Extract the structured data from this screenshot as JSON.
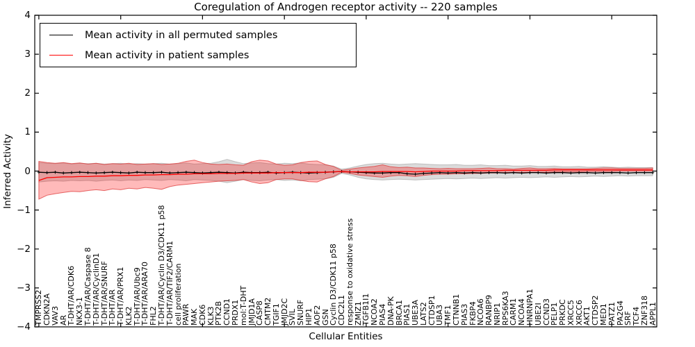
{
  "title": "Coregulation of Androgen receptor activity -- 220 samples",
  "axes": {
    "xlabel": "Cellular Entities",
    "ylabel": "Inferred Activity",
    "ytick_labels": [
      "4",
      "3",
      "2",
      "1",
      "0",
      "−1",
      "−2",
      "−3",
      "−4"
    ]
  },
  "legend": {
    "items": [
      {
        "label": "Mean activity in all permuted samples",
        "color": "#000000"
      },
      {
        "label": "Mean activity in patient samples",
        "color": "#ff0000"
      }
    ]
  },
  "colors": {
    "permuted_line": "#000000",
    "patient_line": "#ff0000",
    "permuted_band_fill": "rgba(125,125,125,0.28)",
    "permuted_band_edge": "rgba(145,145,145,0.5)",
    "patient_band_fill": "rgba(255,0,0,0.27)",
    "patient_band_edge": "rgba(220,45,45,0.7)",
    "axis": "#000000"
  },
  "chart_data": {
    "type": "line",
    "title": "Coregulation of Androgen receptor activity -- 220 samples",
    "xlabel": "Cellular Entities",
    "ylabel": "Inferred Activity",
    "ylim": [
      -4,
      4
    ],
    "yticks": [
      4,
      3,
      2,
      1,
      0,
      -1,
      -2,
      -3,
      -4
    ],
    "xtick_major_every": 10,
    "grid": false,
    "legend_position": "upper left",
    "categories": [
      "TMPRSS2",
      "CDKN2A",
      "VAV3",
      "AR",
      "T-DHT/AR/CDK6",
      "NKX3-1",
      "T-DHT/AR/Caspase 8",
      "T-DHT/AR/CyclinD1",
      "T-DHT/AR/SNURF",
      "T-DHT/AR",
      "T-DHT/AR/PRX1",
      "KLK2",
      "T-DHT/AR/Ubc9",
      "T-DHT/AR/ARA70",
      "FHL2",
      "T-DHT/AR/Cyclin D3/CDK11 p58",
      "T-DHT/AR/TIF2/CARM1",
      "cell proliferation",
      "PAWR",
      "MAK",
      "CDK6",
      "KLK3",
      "PTK2B",
      "CCND1",
      "PRDX1",
      "mol:T-DHT",
      "JMJD1A",
      "CASP8",
      "CMTM2",
      "TGIF1",
      "JMJD2C",
      "SVIL",
      "SNURF",
      "HIP1",
      "AOF2",
      "GSN",
      "Cyclin D3/CDK11 p58",
      "CDC2L1",
      "response to oxidative stress",
      "ZMIZ1",
      "TGFB1I1",
      "NCOA2",
      "PIAS4",
      "DNA-PK",
      "BRCA1",
      "PIAS1",
      "UBE3A",
      "LATS2",
      "CTDSP1",
      "UBA3",
      "TMF1",
      "CTNNB1",
      "PIAS3",
      "FKBP4",
      "NCOA6",
      "RANBP9",
      "NRIP1",
      "RPS6KA3",
      "CARM1",
      "NCOA4",
      "HNRNPA1",
      "UBE2I",
      "CCND3",
      "PELP1",
      "PRKDC",
      "XRCC5",
      "XRCC6",
      "AKT1",
      "CTDSP2",
      "MED1",
      "PATZ1",
      "PA2G4",
      "SRF",
      "TCF4",
      "ZNF318",
      "APPL1"
    ],
    "series": [
      {
        "name": "Mean activity in all permuted samples",
        "color": "#000000",
        "marker": "plus",
        "values": [
          -0.03,
          -0.04,
          -0.03,
          -0.05,
          -0.04,
          -0.03,
          -0.04,
          -0.05,
          -0.04,
          -0.03,
          -0.04,
          -0.05,
          -0.03,
          -0.04,
          -0.04,
          -0.03,
          -0.05,
          -0.04,
          -0.03,
          -0.04,
          -0.05,
          -0.04,
          -0.03,
          -0.04,
          -0.05,
          -0.03,
          -0.04,
          -0.04,
          -0.03,
          -0.05,
          -0.04,
          -0.03,
          -0.04,
          -0.05,
          -0.04,
          -0.03,
          -0.02,
          -0.01,
          -0.02,
          -0.03,
          -0.04,
          -0.05,
          -0.05,
          -0.04,
          -0.04,
          -0.07,
          -0.08,
          -0.06,
          -0.05,
          -0.04,
          -0.05,
          -0.04,
          -0.05,
          -0.04,
          -0.05,
          -0.04,
          -0.04,
          -0.05,
          -0.04,
          -0.05,
          -0.04,
          -0.04,
          -0.05,
          -0.04,
          -0.04,
          -0.05,
          -0.04,
          -0.04,
          -0.05,
          -0.04,
          -0.04,
          -0.04,
          -0.05,
          -0.04,
          -0.04,
          -0.04
        ],
        "band_lo": [
          -0.28,
          -0.26,
          -0.25,
          -0.26,
          -0.24,
          -0.25,
          -0.24,
          -0.26,
          -0.24,
          -0.23,
          -0.25,
          -0.23,
          -0.24,
          -0.22,
          -0.23,
          -0.24,
          -0.22,
          -0.23,
          -0.25,
          -0.22,
          -0.23,
          -0.24,
          -0.26,
          -0.3,
          -0.26,
          -0.22,
          -0.24,
          -0.25,
          -0.23,
          -0.22,
          -0.24,
          -0.23,
          -0.25,
          -0.22,
          -0.21,
          -0.2,
          -0.16,
          -0.06,
          -0.1,
          -0.16,
          -0.2,
          -0.22,
          -0.23,
          -0.22,
          -0.21,
          -0.22,
          -0.23,
          -0.22,
          -0.21,
          -0.2,
          -0.19,
          -0.2,
          -0.19,
          -0.18,
          -0.19,
          -0.18,
          -0.17,
          -0.18,
          -0.17,
          -0.16,
          -0.17,
          -0.16,
          -0.15,
          -0.16,
          -0.15,
          -0.14,
          -0.15,
          -0.14,
          -0.13,
          -0.14,
          -0.13,
          -0.12,
          -0.13,
          -0.12,
          -0.12,
          -0.12
        ],
        "band_hi": [
          0.22,
          0.2,
          0.19,
          0.21,
          0.18,
          0.2,
          0.19,
          0.2,
          0.18,
          0.19,
          0.2,
          0.18,
          0.19,
          0.18,
          0.19,
          0.2,
          0.18,
          0.19,
          0.21,
          0.18,
          0.19,
          0.2,
          0.24,
          0.3,
          0.24,
          0.19,
          0.21,
          0.22,
          0.19,
          0.18,
          0.2,
          0.19,
          0.21,
          0.18,
          0.17,
          0.16,
          0.13,
          0.05,
          0.08,
          0.13,
          0.17,
          0.19,
          0.2,
          0.18,
          0.17,
          0.18,
          0.19,
          0.18,
          0.17,
          0.16,
          0.16,
          0.17,
          0.15,
          0.15,
          0.16,
          0.14,
          0.14,
          0.15,
          0.13,
          0.13,
          0.14,
          0.12,
          0.12,
          0.13,
          0.11,
          0.11,
          0.12,
          0.1,
          0.1,
          0.11,
          0.1,
          0.09,
          0.1,
          0.09,
          0.09,
          0.09
        ],
        "band_fill": "rgba(125,125,125,0.28)",
        "band_edge": "rgba(145,145,145,0.5)"
      },
      {
        "name": "Mean activity in patient samples",
        "color": "#ff0000",
        "marker": "none",
        "values": [
          -0.24,
          -0.17,
          -0.16,
          -0.15,
          -0.15,
          -0.14,
          -0.14,
          -0.13,
          -0.13,
          -0.12,
          -0.12,
          -0.11,
          -0.11,
          -0.1,
          -0.1,
          -0.09,
          -0.09,
          -0.08,
          -0.08,
          -0.07,
          -0.07,
          -0.07,
          -0.06,
          -0.06,
          -0.06,
          -0.05,
          -0.05,
          -0.05,
          -0.05,
          -0.04,
          -0.04,
          -0.04,
          -0.04,
          -0.03,
          -0.03,
          -0.03,
          -0.02,
          -0.01,
          -0.02,
          -0.02,
          -0.02,
          -0.02,
          -0.01,
          -0.01,
          -0.01,
          -0.01,
          -0.02,
          -0.01,
          0.0,
          0.0,
          0.0,
          0.0,
          0.01,
          0.01,
          0.01,
          0.01,
          0.01,
          0.02,
          0.02,
          0.02,
          0.02,
          0.02,
          0.02,
          0.03,
          0.03,
          0.03,
          0.03,
          0.03,
          0.03,
          0.03,
          0.03,
          0.03,
          0.03,
          0.03,
          0.03,
          0.03
        ],
        "band_lo": [
          -0.72,
          -0.62,
          -0.58,
          -0.55,
          -0.52,
          -0.53,
          -0.5,
          -0.48,
          -0.5,
          -0.46,
          -0.48,
          -0.44,
          -0.46,
          -0.42,
          -0.44,
          -0.47,
          -0.4,
          -0.36,
          -0.34,
          -0.32,
          -0.3,
          -0.28,
          -0.26,
          -0.25,
          -0.24,
          -0.22,
          -0.28,
          -0.32,
          -0.3,
          -0.22,
          -0.2,
          -0.2,
          -0.24,
          -0.27,
          -0.28,
          -0.2,
          -0.14,
          -0.03,
          -0.06,
          -0.1,
          -0.12,
          -0.14,
          -0.16,
          -0.13,
          -0.11,
          -0.12,
          -0.14,
          -0.11,
          -0.09,
          -0.08,
          -0.08,
          -0.07,
          -0.07,
          -0.06,
          -0.06,
          -0.05,
          -0.05,
          -0.04,
          -0.04,
          -0.04,
          -0.03,
          -0.03,
          -0.03,
          -0.02,
          -0.02,
          -0.02,
          -0.02,
          -0.01,
          -0.01,
          -0.01,
          -0.01,
          0.0,
          0.0,
          0.0,
          0.0,
          0.0
        ],
        "band_hi": [
          0.25,
          0.22,
          0.2,
          0.22,
          0.19,
          0.21,
          0.18,
          0.2,
          0.17,
          0.19,
          0.18,
          0.2,
          0.17,
          0.18,
          0.19,
          0.17,
          0.18,
          0.2,
          0.25,
          0.28,
          0.22,
          0.18,
          0.17,
          0.18,
          0.16,
          0.15,
          0.24,
          0.28,
          0.26,
          0.18,
          0.15,
          0.16,
          0.22,
          0.25,
          0.26,
          0.17,
          0.12,
          0.02,
          0.05,
          0.08,
          0.1,
          0.12,
          0.16,
          0.11,
          0.09,
          0.1,
          0.08,
          0.08,
          0.07,
          0.06,
          0.07,
          0.06,
          0.06,
          0.06,
          0.07,
          0.08,
          0.06,
          0.06,
          0.05,
          0.07,
          0.08,
          0.06,
          0.06,
          0.07,
          0.06,
          0.06,
          0.06,
          0.06,
          0.07,
          0.08,
          0.08,
          0.07,
          0.07,
          0.07,
          0.07,
          0.08
        ],
        "band_fill": "rgba(255,0,0,0.27)",
        "band_edge": "rgba(220,45,45,0.7)"
      }
    ]
  }
}
